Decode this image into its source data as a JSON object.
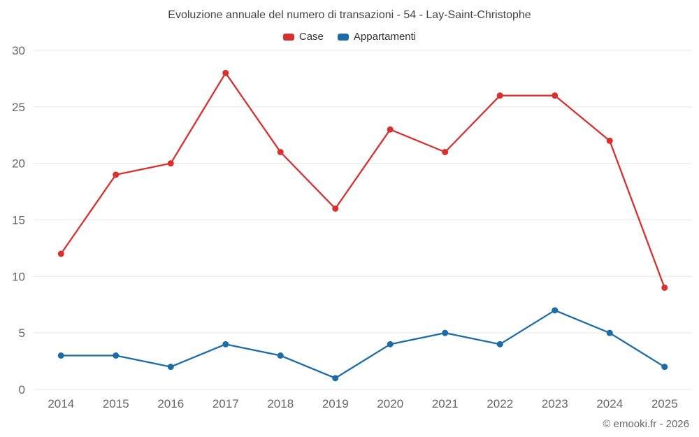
{
  "chart_data": {
    "type": "line",
    "title": "Evoluzione annuale del numero di transazioni - 54 - Lay-Saint-Christophe",
    "footer": "© emooki.fr - 2026",
    "categories": [
      "2014",
      "2015",
      "2016",
      "2017",
      "2018",
      "2019",
      "2020",
      "2021",
      "2022",
      "2023",
      "2024",
      "2025"
    ],
    "series": [
      {
        "name": "Case",
        "color": "#d7302e",
        "values": [
          12,
          19,
          20,
          28,
          21,
          16,
          23,
          21,
          26,
          26,
          22,
          9
        ]
      },
      {
        "name": "Appartamenti",
        "color": "#1c6ca8",
        "values": [
          3,
          3,
          2,
          4,
          3,
          1,
          4,
          5,
          4,
          7,
          5,
          2
        ]
      }
    ],
    "ylim": [
      0,
      30
    ],
    "ytick_step": 5,
    "grid": true,
    "legend_position": "top",
    "colors": {
      "grid": "#e6e6e6",
      "axis_label": "#666666",
      "title_text": "#444444",
      "legend_text": "#333333",
      "background": "#ffffff"
    }
  }
}
